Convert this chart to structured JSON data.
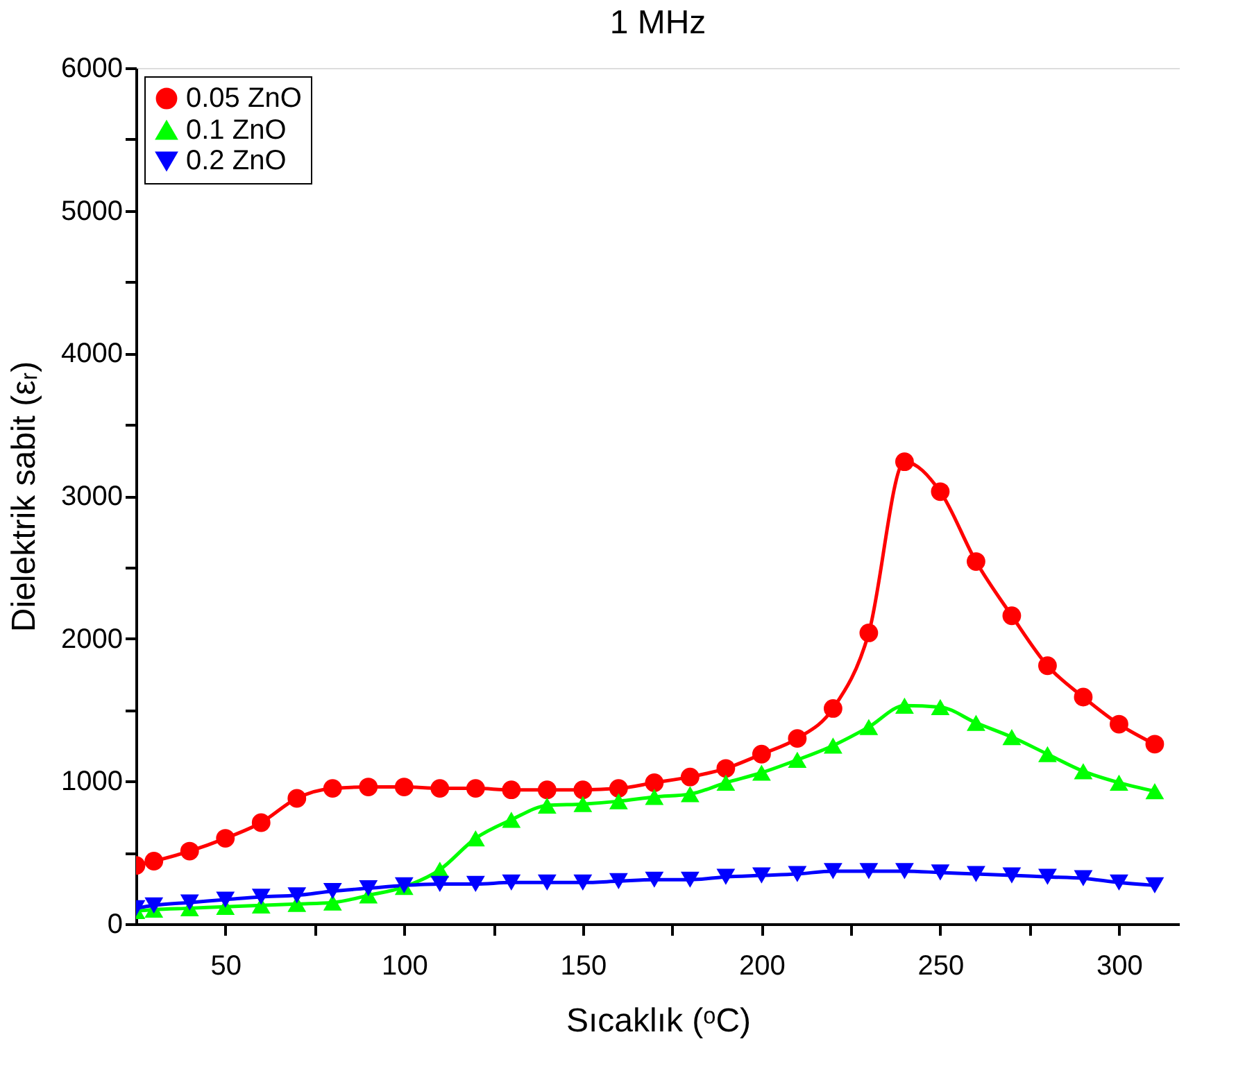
{
  "chart_data": {
    "type": "line",
    "title": "1 MHz",
    "xlabel": "Sıcaklık (ᵒC)",
    "ylabel": "Dielektrik sabit (εᵣ)",
    "x": [
      25,
      30,
      40,
      50,
      60,
      70,
      80,
      90,
      100,
      110,
      120,
      130,
      140,
      150,
      160,
      170,
      180,
      190,
      200,
      210,
      220,
      230,
      240,
      250,
      260,
      270,
      280,
      290,
      300,
      310
    ],
    "series": [
      {
        "name": "0.05 ZnO",
        "color": "#ff0000",
        "marker": "circle",
        "values": [
          410,
          440,
          510,
          600,
          710,
          880,
          950,
          960,
          960,
          950,
          950,
          940,
          940,
          940,
          950,
          990,
          1030,
          1090,
          1190,
          1300,
          1510,
          2040,
          3240,
          3030,
          2540,
          2160,
          1810,
          1590,
          1400,
          1260
        ]
      },
      {
        "name": "0.1 ZnO",
        "color": "#00ff00",
        "marker": "triangle",
        "values": [
          90,
          100,
          110,
          120,
          130,
          140,
          150,
          200,
          260,
          380,
          600,
          730,
          830,
          840,
          860,
          890,
          910,
          990,
          1060,
          1150,
          1250,
          1380,
          1530,
          1520,
          1410,
          1310,
          1190,
          1070,
          990,
          930
        ]
      },
      {
        "name": "0.2 ZnO",
        "color": "#0000ff",
        "marker": "triangle-down",
        "values": [
          110,
          130,
          150,
          170,
          190,
          200,
          230,
          250,
          270,
          280,
          280,
          290,
          290,
          290,
          300,
          310,
          310,
          330,
          340,
          350,
          370,
          370,
          370,
          360,
          350,
          340,
          330,
          320,
          290,
          270
        ]
      }
    ],
    "xlim": [
      25,
      317
    ],
    "xticks": [
      50,
      {
        "value": 75,
        "label": null
      },
      100,
      {
        "value": 125,
        "label": null
      },
      150,
      {
        "value": 175,
        "label": null
      },
      200,
      {
        "value": 225,
        "label": null
      },
      250,
      {
        "value": 275,
        "label": null
      },
      300
    ],
    "ylim": [
      0,
      6000
    ],
    "yticks": [
      0,
      {
        "value": 500,
        "label": null
      },
      1000,
      {
        "value": 1500,
        "label": null
      },
      2000,
      {
        "value": 2500,
        "label": null
      },
      3000,
      {
        "value": 3500,
        "label": null
      },
      4000,
      {
        "value": 4500,
        "label": null
      },
      5000,
      {
        "value": 5500,
        "label": null
      },
      6000
    ],
    "grid": false,
    "legend": "top left",
    "line_style": "solid"
  }
}
